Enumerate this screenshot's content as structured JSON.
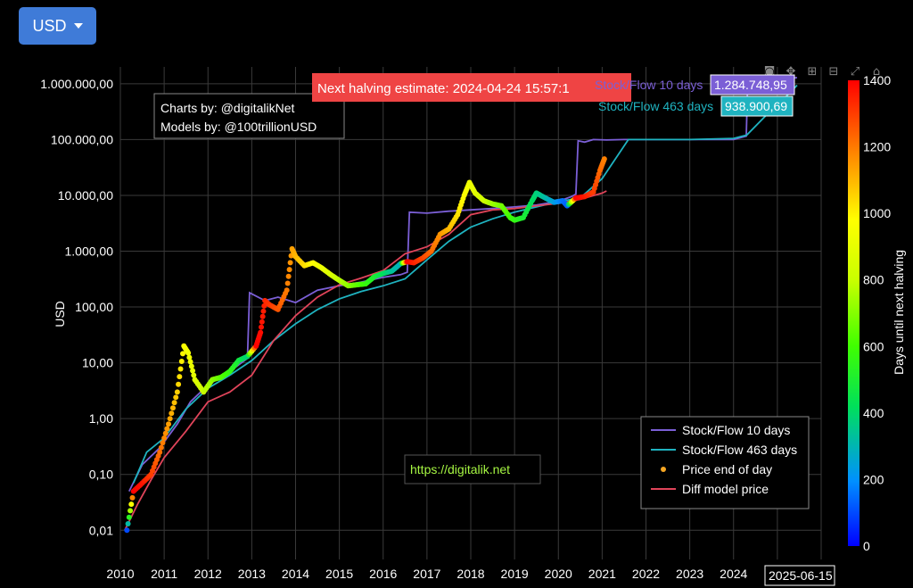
{
  "currency_button": {
    "label": "USD"
  },
  "toolbar_icons": [
    "camera-icon",
    "pan-icon",
    "zoom-in-icon",
    "zoom-out-icon",
    "autoscale-icon",
    "reset-icon"
  ],
  "credits": {
    "line1": "Charts by: @digitalikNet",
    "line2": "Models by: @100trillionUSD"
  },
  "watermark": "https://digitalik.net",
  "halving_banner": "Next halving estimate: 2024-04-24 15:57:1",
  "hover_date": "2025-06-15",
  "hover_labels": [
    {
      "name": "Stock/Flow 10 days",
      "value": "1.284.748,95",
      "color": "#7b5fd6"
    },
    {
      "name": "Stock/Flow 463 days",
      "value": "938.900,69",
      "color": "#1fb3c0"
    }
  ],
  "chart_data": {
    "type": "scatter",
    "title": "",
    "xlabel": "",
    "ylabel": "USD",
    "xlim": [
      2010,
      2026
    ],
    "ylim": [
      0.003,
      2000000
    ],
    "y_scale": "log",
    "grid": true,
    "x_ticks": [
      "2010",
      "2011",
      "2012",
      "2013",
      "2014",
      "2015",
      "2016",
      "2017",
      "2018",
      "2019",
      "2020",
      "2021",
      "2022",
      "2023",
      "2024"
    ],
    "y_ticks": [
      {
        "v": 0.01,
        "label": "0,01"
      },
      {
        "v": 0.1,
        "label": "0,10"
      },
      {
        "v": 1,
        "label": "1,00"
      },
      {
        "v": 10,
        "label": "10,00"
      },
      {
        "v": 100,
        "label": "100,00"
      },
      {
        "v": 1000,
        "label": "1.000,00"
      },
      {
        "v": 10000,
        "label": "10.000,00"
      },
      {
        "v": 100000,
        "label": "100.000,00"
      },
      {
        "v": 1000000,
        "label": "1.000.000,00"
      }
    ],
    "legend_position": "bottom-right",
    "legend": [
      {
        "name": "Stock/Flow 10 days",
        "color": "#7b5fd6",
        "kind": "line"
      },
      {
        "name": "Stock/Flow 463 days",
        "color": "#1fb3c0",
        "kind": "line"
      },
      {
        "name": "Price end of day",
        "color": "#f5a623",
        "kind": "dot"
      },
      {
        "name": "Diff model price",
        "color": "#e0445a",
        "kind": "line"
      }
    ],
    "colorbar": {
      "title": "Days until next halving",
      "min": 0,
      "max": 1400,
      "ticks": [
        0,
        200,
        400,
        600,
        800,
        1000,
        1200,
        1400
      ]
    },
    "series": [
      {
        "name": "Stock/Flow 10 days",
        "color": "#7b5fd6",
        "x": [
          2010.2,
          2010.5,
          2010.9,
          2011.3,
          2011.6,
          2012.0,
          2012.5,
          2012.9,
          2012.95,
          2013.3,
          2013.6,
          2014.0,
          2014.5,
          2015.0,
          2015.5,
          2016.0,
          2016.4,
          2016.55,
          2016.6,
          2017.0,
          2017.5,
          2018.0,
          2018.5,
          2019.0,
          2019.5,
          2020.0,
          2020.3,
          2020.4,
          2020.45,
          2020.6,
          2020.8,
          2021.1,
          2021.5,
          2022.0,
          2023.0,
          2024.0,
          2024.29,
          2024.32,
          2025.0,
          2025.45
        ],
        "y": [
          0.05,
          0.15,
          0.3,
          0.8,
          2,
          4,
          7,
          12,
          180,
          130,
          150,
          120,
          200,
          240,
          280,
          340,
          380,
          420,
          5000,
          4800,
          5200,
          5500,
          5800,
          6200,
          6700,
          7800,
          9500,
          10500,
          95000,
          90000,
          100000,
          98000,
          100000,
          100000,
          100000,
          100000,
          115000,
          950000,
          1200000,
          1284748
        ]
      },
      {
        "name": "Stock/Flow 463 days",
        "color": "#1fb3c0",
        "x": [
          2010.3,
          2010.6,
          2011.0,
          2011.5,
          2012.0,
          2012.5,
          2013.0,
          2013.5,
          2014.0,
          2014.5,
          2015.0,
          2015.5,
          2016.0,
          2016.5,
          2017.0,
          2017.5,
          2018.0,
          2018.5,
          2019.0,
          2019.5,
          2020.0,
          2020.5,
          2021.0,
          2021.6,
          2022.0,
          2023.0,
          2024.0,
          2024.3,
          2024.8,
          2025.3,
          2025.45
        ],
        "y": [
          0.07,
          0.25,
          0.45,
          1.5,
          3.5,
          6,
          11,
          25,
          50,
          90,
          140,
          190,
          240,
          320,
          700,
          1500,
          2700,
          3800,
          5000,
          6200,
          7700,
          9000,
          20000,
          100000,
          100000,
          100000,
          105000,
          120000,
          300000,
          700000,
          938900
        ]
      },
      {
        "name": "Diff model price",
        "color": "#e0445a",
        "x": [
          2010.1,
          2010.4,
          2010.7,
          2011.0,
          2011.5,
          2012.0,
          2012.5,
          2013.0,
          2013.5,
          2014.0,
          2014.5,
          2015.0,
          2015.5,
          2016.0,
          2016.5,
          2017.0,
          2017.5,
          2018.0,
          2018.5,
          2019.0,
          2019.5,
          2020.0,
          2020.5,
          2021.0,
          2021.1
        ],
        "y": [
          0.01,
          0.03,
          0.08,
          0.2,
          0.6,
          2,
          3,
          6,
          25,
          70,
          150,
          250,
          330,
          450,
          900,
          1200,
          2000,
          4500,
          5500,
          5800,
          6500,
          7200,
          8500,
          11000,
          12000
        ]
      },
      {
        "name": "Price end of day",
        "color": "#f5a623",
        "x": [
          2010.15,
          2010.3,
          2010.5,
          2010.7,
          2010.9,
          2011.1,
          2011.3,
          2011.45,
          2011.55,
          2011.7,
          2011.9,
          2012.1,
          2012.3,
          2012.5,
          2012.7,
          2012.9,
          2013.1,
          2013.2,
          2013.3,
          2013.4,
          2013.6,
          2013.8,
          2013.92,
          2014.0,
          2014.2,
          2014.4,
          2014.6,
          2014.8,
          2015.0,
          2015.2,
          2015.4,
          2015.6,
          2015.8,
          2016.0,
          2016.2,
          2016.4,
          2016.55,
          2016.7,
          2016.9,
          2017.1,
          2017.3,
          2017.5,
          2017.7,
          2017.85,
          2017.97,
          2018.1,
          2018.3,
          2018.5,
          2018.7,
          2018.9,
          2019.0,
          2019.2,
          2019.4,
          2019.5,
          2019.7,
          2019.9,
          2020.1,
          2020.2,
          2020.4,
          2020.6,
          2020.8,
          2020.95,
          2021.05
        ],
        "y": [
          0.01,
          0.05,
          0.07,
          0.1,
          0.25,
          0.8,
          3,
          20,
          15,
          5,
          3,
          5,
          5.5,
          7,
          11,
          13,
          20,
          35,
          130,
          110,
          90,
          200,
          1100,
          800,
          550,
          620,
          500,
          380,
          300,
          240,
          250,
          260,
          350,
          400,
          440,
          600,
          650,
          620,
          750,
          1000,
          2000,
          2500,
          4500,
          10000,
          17000,
          11000,
          8000,
          7000,
          6500,
          4000,
          3600,
          4000,
          8000,
          11000,
          9000,
          7500,
          8000,
          6500,
          9000,
          9500,
          11500,
          28000,
          45000
        ],
        "c": [
          100,
          1400,
          1370,
          1300,
          1220,
          1140,
          1060,
          980,
          940,
          880,
          800,
          720,
          640,
          570,
          480,
          380,
          1400,
          1380,
          1340,
          1320,
          1260,
          1200,
          1140,
          1100,
          1040,
          980,
          920,
          860,
          780,
          720,
          650,
          580,
          500,
          420,
          340,
          280,
          1400,
          1350,
          1290,
          1230,
          1160,
          1100,
          1030,
          980,
          930,
          890,
          820,
          740,
          680,
          600,
          570,
          500,
          420,
          380,
          320,
          240,
          160,
          130,
          1400,
          1360,
          1300,
          1230,
          1190
        ]
      }
    ]
  }
}
